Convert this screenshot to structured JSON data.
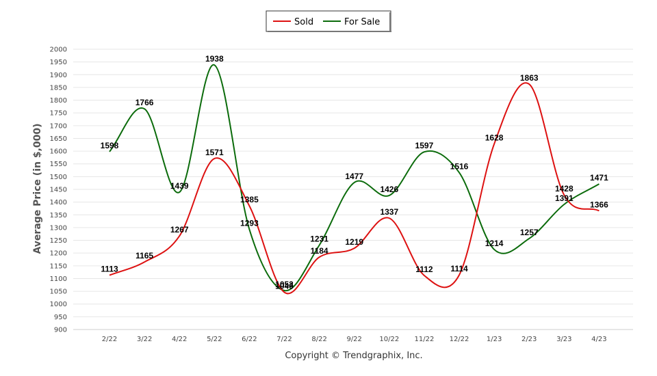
{
  "chart_data": {
    "type": "line",
    "categories": [
      "2/22",
      "3/22",
      "4/22",
      "5/22",
      "6/22",
      "7/22",
      "8/22",
      "9/22",
      "10/22",
      "11/22",
      "12/22",
      "1/23",
      "2/23",
      "3/23",
      "4/23"
    ],
    "series": [
      {
        "name": "Sold",
        "color": "#dd1111",
        "values": [
          1113,
          1165,
          1267,
          1571,
          1385,
          1046,
          1184,
          1219,
          1337,
          1112,
          1114,
          1628,
          1863,
          1428,
          1366
        ]
      },
      {
        "name": "For Sale",
        "color": "#0b6b0b",
        "values": [
          1598,
          1766,
          1439,
          1938,
          1293,
          1053,
          1231,
          1477,
          1426,
          1597,
          1516,
          1214,
          1257,
          1391,
          1471
        ]
      }
    ],
    "ylabel": "Average Price (in $,000)",
    "ylim": [
      900,
      2000
    ],
    "ystep": 50,
    "grid": true,
    "legend": "top-center",
    "footer": "Copyright © Trendgraphix, Inc."
  }
}
